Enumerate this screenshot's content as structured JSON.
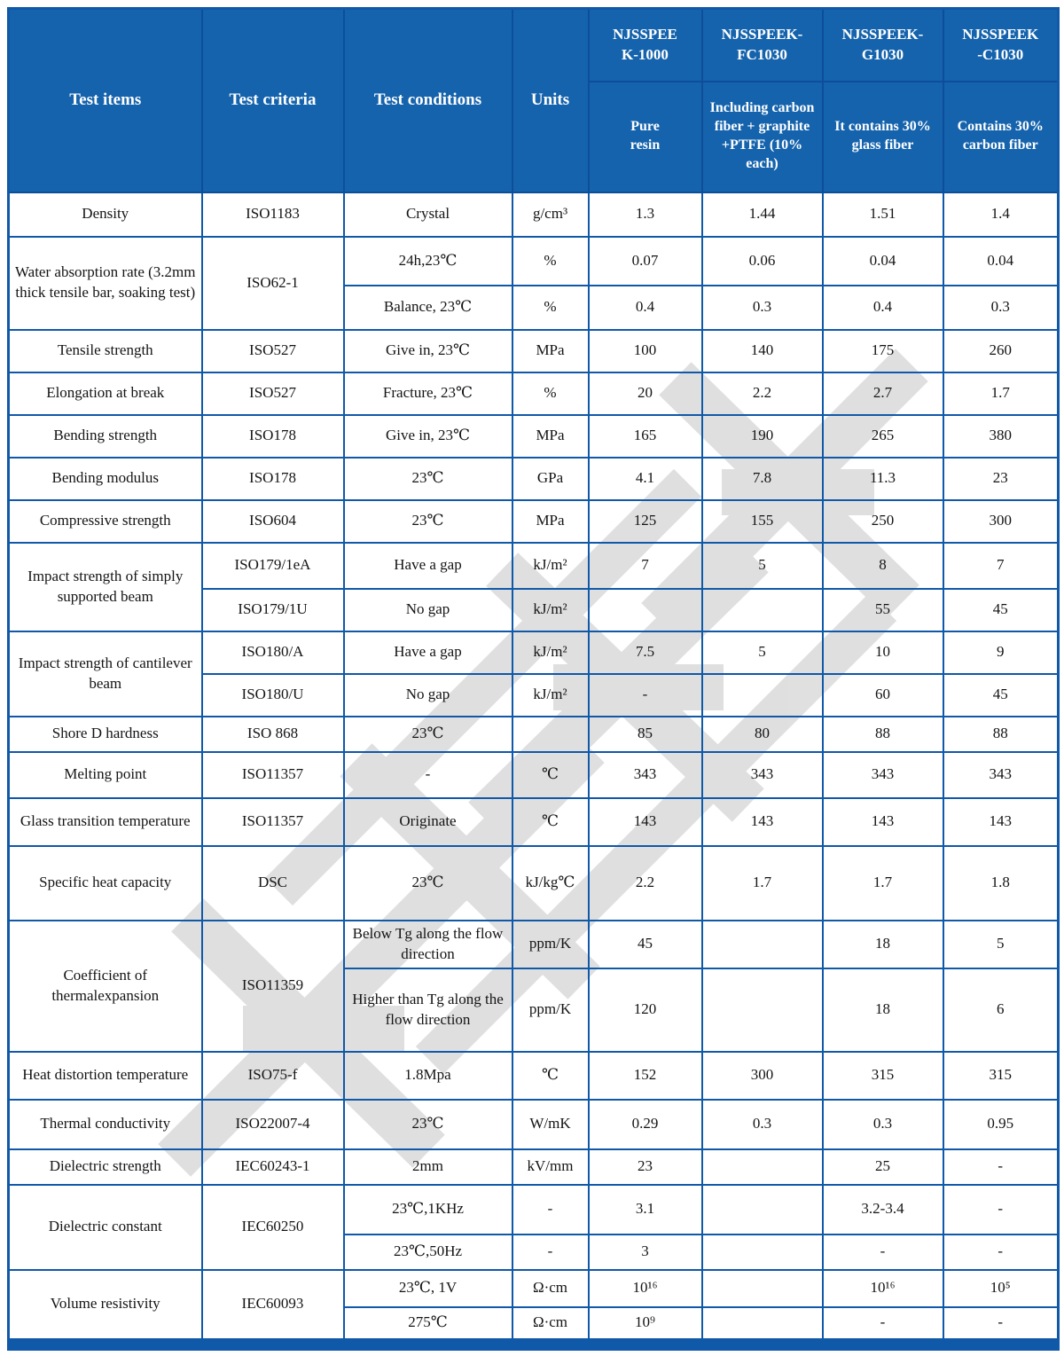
{
  "colors": {
    "header_bg": "#1563AC",
    "border": "#1058A8",
    "header_text": "#FFFFFF",
    "body_text": "#141414",
    "watermark": "#DADADA"
  },
  "watermark": {
    "text": "南京首塑"
  },
  "header": {
    "static_cols": [
      "Test items",
      "Test criteria",
      "Test conditions",
      "Units"
    ],
    "products": [
      {
        "name": "NJSSPEE\nK-1000",
        "desc": "Pure\nresin"
      },
      {
        "name": "NJSSPEEK-\nFC1030",
        "desc": "Including carbon fiber + graphite +PTFE (10% each)"
      },
      {
        "name": "NJSSPEEK-\nG1030",
        "desc": "It contains 30% glass fiber"
      },
      {
        "name": "NJSSPEEK\n-C1030",
        "desc": "Contains 30% carbon fiber"
      }
    ]
  },
  "rows": [
    [
      {
        "t": "Density"
      },
      {
        "t": "ISO1183"
      },
      {
        "t": "Crystal"
      },
      {
        "t": "g/cm³"
      },
      {
        "t": "1.3"
      },
      {
        "t": "1.44"
      },
      {
        "t": "1.51"
      },
      {
        "t": "1.4"
      }
    ],
    [
      {
        "t": "Water absorption rate (3.2mm thick tensile bar, soaking test)",
        "rs": 2
      },
      {
        "t": "ISO62-1",
        "rs": 2
      },
      {
        "t": "24h,23℃"
      },
      {
        "t": "%"
      },
      {
        "t": "0.07"
      },
      {
        "t": "0.06"
      },
      {
        "t": "0.04"
      },
      {
        "t": "0.04"
      }
    ],
    [
      {
        "t": "Balance, 23℃"
      },
      {
        "t": "%"
      },
      {
        "t": "0.4"
      },
      {
        "t": "0.3"
      },
      {
        "t": "0.4"
      },
      {
        "t": "0.3"
      }
    ],
    [
      {
        "t": "Tensile strength"
      },
      {
        "t": "ISO527"
      },
      {
        "t": "Give in, 23℃"
      },
      {
        "t": "MPa"
      },
      {
        "t": "100"
      },
      {
        "t": "140"
      },
      {
        "t": "175"
      },
      {
        "t": "260"
      }
    ],
    [
      {
        "t": "Elongation at break"
      },
      {
        "t": "ISO527"
      },
      {
        "t": "Fracture, 23℃"
      },
      {
        "t": "%"
      },
      {
        "t": "20"
      },
      {
        "t": "2.2"
      },
      {
        "t": "2.7"
      },
      {
        "t": "1.7"
      }
    ],
    [
      {
        "t": "Bending strength"
      },
      {
        "t": "ISO178"
      },
      {
        "t": "Give in, 23℃"
      },
      {
        "t": "MPa"
      },
      {
        "t": "165"
      },
      {
        "t": "190"
      },
      {
        "t": "265"
      },
      {
        "t": "380"
      }
    ],
    [
      {
        "t": "Bending modulus"
      },
      {
        "t": "ISO178"
      },
      {
        "t": "23℃"
      },
      {
        "t": "GPa"
      },
      {
        "t": "4.1"
      },
      {
        "t": "7.8"
      },
      {
        "t": "11.3"
      },
      {
        "t": "23"
      }
    ],
    [
      {
        "t": "Compressive strength"
      },
      {
        "t": "ISO604"
      },
      {
        "t": "23℃"
      },
      {
        "t": "MPa"
      },
      {
        "t": "125"
      },
      {
        "t": "155"
      },
      {
        "t": "250"
      },
      {
        "t": "300"
      }
    ],
    [
      {
        "t": "Impact strength of simply supported beam",
        "rs": 2
      },
      {
        "t": "ISO179/1eA"
      },
      {
        "t": "Have a gap"
      },
      {
        "t": "kJ/m²"
      },
      {
        "t": "7"
      },
      {
        "t": "5"
      },
      {
        "t": "8"
      },
      {
        "t": "7"
      }
    ],
    [
      {
        "t": "ISO179/1U"
      },
      {
        "t": "No gap"
      },
      {
        "t": "kJ/m²"
      },
      {
        "t": ""
      },
      {
        "t": ""
      },
      {
        "t": "55"
      },
      {
        "t": "45"
      }
    ],
    [
      {
        "t": "Impact strength of cantilever beam",
        "rs": 2
      },
      {
        "t": "ISO180/A"
      },
      {
        "t": "Have a gap"
      },
      {
        "t": "kJ/m²"
      },
      {
        "t": "7.5"
      },
      {
        "t": "5"
      },
      {
        "t": "10"
      },
      {
        "t": "9"
      }
    ],
    [
      {
        "t": "ISO180/U"
      },
      {
        "t": "No gap"
      },
      {
        "t": "kJ/m²"
      },
      {
        "t": "-"
      },
      {
        "t": ""
      },
      {
        "t": "60"
      },
      {
        "t": "45"
      }
    ],
    [
      {
        "t": "Shore D hardness"
      },
      {
        "t": "ISO 868"
      },
      {
        "t": "23℃"
      },
      {
        "t": ""
      },
      {
        "t": "85"
      },
      {
        "t": "80"
      },
      {
        "t": "88"
      },
      {
        "t": "88"
      }
    ],
    [
      {
        "t": "Melting point"
      },
      {
        "t": "ISO11357"
      },
      {
        "t": "-"
      },
      {
        "t": "℃"
      },
      {
        "t": "343"
      },
      {
        "t": "343"
      },
      {
        "t": "343"
      },
      {
        "t": "343"
      }
    ],
    [
      {
        "t": "Glass transition temperature"
      },
      {
        "t": "ISO11357"
      },
      {
        "t": "Originate"
      },
      {
        "t": "℃"
      },
      {
        "t": "143"
      },
      {
        "t": "143"
      },
      {
        "t": "143"
      },
      {
        "t": "143"
      }
    ],
    [
      {
        "t": "Specific heat capacity"
      },
      {
        "t": "DSC"
      },
      {
        "t": "23℃"
      },
      {
        "t": "kJ/kg℃"
      },
      {
        "t": "2.2"
      },
      {
        "t": "1.7"
      },
      {
        "t": "1.7"
      },
      {
        "t": "1.8"
      }
    ],
    [
      {
        "t": "Coefficient of thermalexpansion",
        "rs": 2
      },
      {
        "t": "ISO11359",
        "rs": 2
      },
      {
        "t": "Below Tg along the flow direction"
      },
      {
        "t": "ppm/K"
      },
      {
        "t": "45"
      },
      {
        "t": ""
      },
      {
        "t": "18"
      },
      {
        "t": "5"
      }
    ],
    [
      {
        "t": "Higher than Tg along the flow direction"
      },
      {
        "t": "ppm/K"
      },
      {
        "t": "120"
      },
      {
        "t": ""
      },
      {
        "t": "18"
      },
      {
        "t": "6"
      }
    ],
    [
      {
        "t": "Heat distortion temperature"
      },
      {
        "t": "ISO75-f"
      },
      {
        "t": "1.8Mpa"
      },
      {
        "t": "℃"
      },
      {
        "t": "152"
      },
      {
        "t": "300"
      },
      {
        "t": "315"
      },
      {
        "t": "315"
      }
    ],
    [
      {
        "t": "Thermal conductivity"
      },
      {
        "t": "ISO22007-4"
      },
      {
        "t": "23℃"
      },
      {
        "t": "W/mK"
      },
      {
        "t": "0.29"
      },
      {
        "t": "0.3"
      },
      {
        "t": "0.3"
      },
      {
        "t": "0.95"
      }
    ],
    [
      {
        "t": "Dielectric strength"
      },
      {
        "t": "IEC60243-1"
      },
      {
        "t": "2mm"
      },
      {
        "t": "kV/mm"
      },
      {
        "t": "23"
      },
      {
        "t": ""
      },
      {
        "t": "25"
      },
      {
        "t": "-"
      }
    ],
    [
      {
        "t": "Dielectric constant",
        "rs": 2
      },
      {
        "t": "IEC60250",
        "rs": 2
      },
      {
        "t": "23℃,1KHz"
      },
      {
        "t": "-"
      },
      {
        "t": "3.1"
      },
      {
        "t": ""
      },
      {
        "t": "3.2-3.4"
      },
      {
        "t": "-"
      }
    ],
    [
      {
        "t": "23℃,50Hz"
      },
      {
        "t": "-"
      },
      {
        "t": "3"
      },
      {
        "t": ""
      },
      {
        "t": "-"
      },
      {
        "t": "-"
      }
    ],
    [
      {
        "t": "Volume resistivity",
        "rs": 2
      },
      {
        "t": "IEC60093",
        "rs": 2
      },
      {
        "t": "23℃, 1V"
      },
      {
        "t": "Ω·cm"
      },
      {
        "t": "10¹⁶"
      },
      {
        "t": ""
      },
      {
        "t": "10¹⁶"
      },
      {
        "t": "10⁵"
      }
    ],
    [
      {
        "t": "275℃"
      },
      {
        "t": "Ω·cm"
      },
      {
        "t": "10⁹"
      },
      {
        "t": ""
      },
      {
        "t": "-"
      },
      {
        "t": "-"
      }
    ]
  ]
}
